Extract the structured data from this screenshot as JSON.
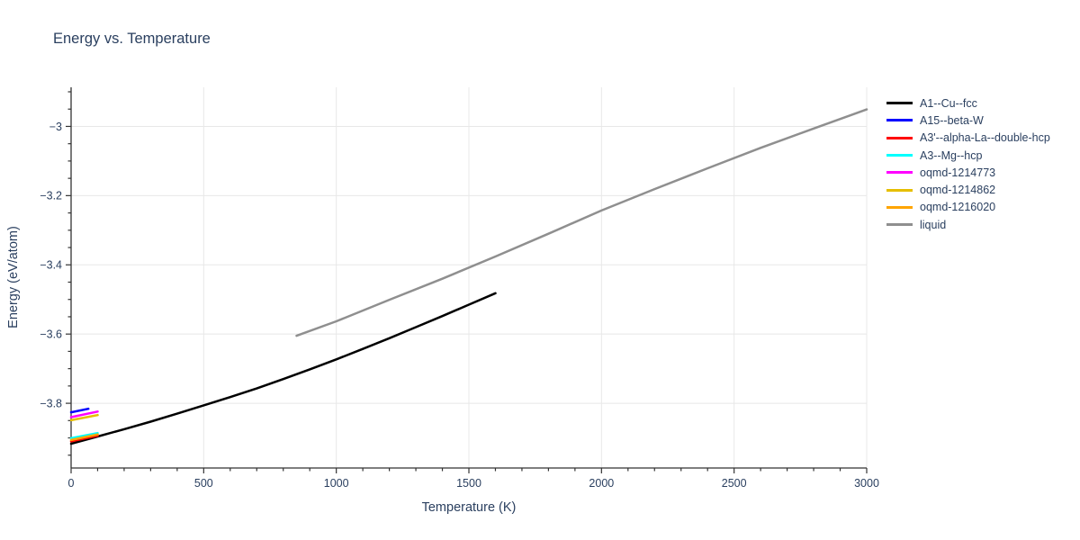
{
  "chart_data": {
    "type": "line",
    "title": "Energy vs. Temperature",
    "xlabel": "Temperature (K)",
    "ylabel": "Energy (eV/atom)",
    "xlim": [
      0,
      3000
    ],
    "ylim": [
      -3.987,
      -2.887
    ],
    "x_major_ticks": [
      0,
      500,
      1000,
      1500,
      2000,
      2500,
      3000
    ],
    "x_minor_step": 100,
    "y_major_ticks": [
      -3,
      -3.2,
      -3.4,
      -3.6,
      -3.8
    ],
    "y_minor_step": 0.05,
    "grid": "major-only",
    "legend_position": "right",
    "colors": {
      "grid": "#e8e8e8",
      "axis": "#333333",
      "text": "#2a3f5f",
      "background": "#ffffff"
    },
    "series": [
      {
        "name": "A1--Cu--fcc",
        "color": "#000000",
        "points": [
          [
            0,
            -3.917
          ],
          [
            100,
            -3.896
          ],
          [
            200,
            -3.875
          ],
          [
            300,
            -3.853
          ],
          [
            400,
            -3.83
          ],
          [
            500,
            -3.806
          ],
          [
            600,
            -3.782
          ],
          [
            700,
            -3.757
          ],
          [
            800,
            -3.73
          ],
          [
            900,
            -3.702
          ],
          [
            1000,
            -3.673
          ],
          [
            1100,
            -3.643
          ],
          [
            1200,
            -3.612
          ],
          [
            1300,
            -3.58
          ],
          [
            1400,
            -3.548
          ],
          [
            1500,
            -3.515
          ],
          [
            1600,
            -3.482
          ]
        ]
      },
      {
        "name": "A15--beta-W",
        "color": "#0000ff",
        "points": [
          [
            0,
            -3.826
          ],
          [
            65,
            -3.816
          ]
        ]
      },
      {
        "name": "A3'--alpha-La--double-hcp",
        "color": "#ff0000",
        "points": [
          [
            0,
            -3.91
          ],
          [
            100,
            -3.894
          ]
        ]
      },
      {
        "name": "A3--Mg--hcp",
        "color": "#00ffff",
        "points": [
          [
            0,
            -3.901
          ],
          [
            100,
            -3.886
          ]
        ]
      },
      {
        "name": "oqmd-1214773",
        "color": "#ff00ff",
        "points": [
          [
            0,
            -3.84
          ],
          [
            100,
            -3.824
          ]
        ]
      },
      {
        "name": "oqmd-1214862",
        "color": "#e6be00",
        "points": [
          [
            0,
            -3.849
          ],
          [
            100,
            -3.834
          ]
        ]
      },
      {
        "name": "oqmd-1216020",
        "color": "#ffa500",
        "points": [
          [
            0,
            -3.906
          ],
          [
            100,
            -3.89
          ]
        ]
      },
      {
        "name": "liquid",
        "color": "#8f8f8f",
        "points": [
          [
            850,
            -3.605
          ],
          [
            1000,
            -3.563
          ],
          [
            1200,
            -3.501
          ],
          [
            1400,
            -3.44
          ],
          [
            1600,
            -3.376
          ],
          [
            1800,
            -3.31
          ],
          [
            2000,
            -3.243
          ],
          [
            2200,
            -3.181
          ],
          [
            2400,
            -3.121
          ],
          [
            2600,
            -3.062
          ],
          [
            2800,
            -3.006
          ],
          [
            3000,
            -2.951
          ]
        ]
      }
    ]
  }
}
